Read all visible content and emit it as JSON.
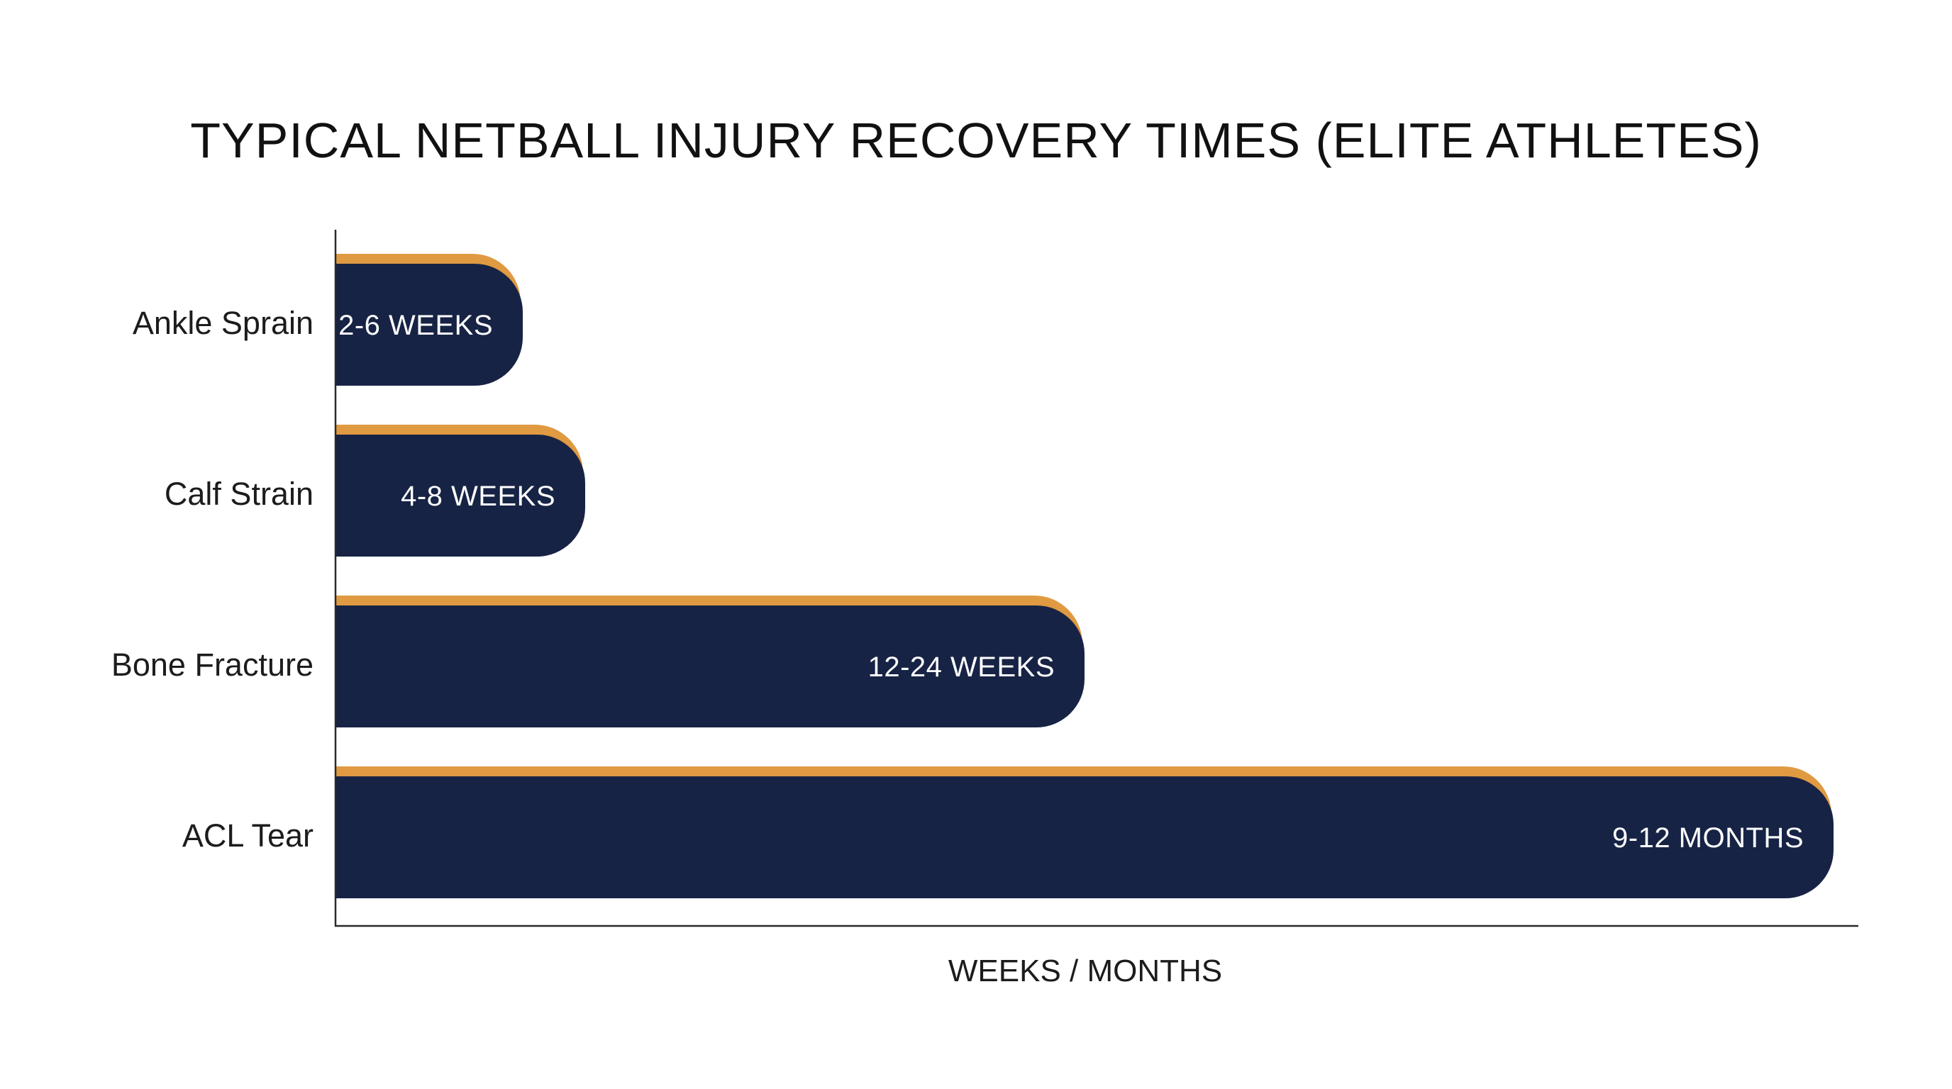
{
  "chart_data": {
    "type": "bar",
    "orientation": "horizontal",
    "title": "TYPICAL NETBALL INJURY RECOVERY TIMES (ELITE ATHLETES)",
    "xlabel": "WEEKS / MONTHS",
    "ylabel": "",
    "categories": [
      "Ankle Sprain",
      "Calf Strain",
      "Bone Fracture",
      "ACL Tear"
    ],
    "values": [
      6,
      8,
      24,
      48
    ],
    "value_labels": [
      "2-6 WEEKS",
      "4-8 WEEKS",
      "12-24 WEEKS",
      "9-12 MONTHS"
    ],
    "xlim": [
      0,
      50
    ],
    "grid": false,
    "legend": "none",
    "colors": {
      "bar": "#172345",
      "accent": "#E09A42",
      "axis": "#2a2a2a",
      "text": "#1c1c1c"
    }
  }
}
